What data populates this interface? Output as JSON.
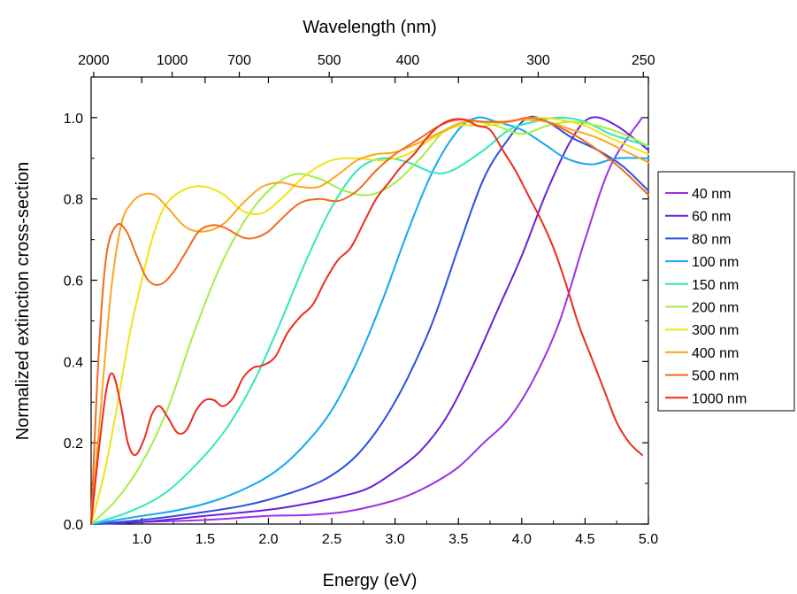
{
  "chart_data": {
    "type": "line",
    "xlabel": "Energy (eV)",
    "ylabel": "Normalized extinction cross-section",
    "top_xlabel": "Wavelength (nm)",
    "xlim": [
      0.6,
      5.0
    ],
    "ylim": [
      0.0,
      1.1
    ],
    "x_ticks": [
      1.0,
      1.5,
      2.0,
      2.5,
      3.0,
      3.5,
      4.0,
      4.5,
      5.0
    ],
    "x_tick_labels": [
      "1.0",
      "1.5",
      "2.0",
      "2.5",
      "3.0",
      "3.5",
      "4.0",
      "4.5",
      "5.0"
    ],
    "y_ticks": [
      0.0,
      0.2,
      0.4,
      0.6,
      0.8,
      1.0
    ],
    "y_tick_labels": [
      "0.0",
      "0.2",
      "0.4",
      "0.6",
      "0.8",
      "1.0"
    ],
    "top_ticks": [
      {
        "label": "2000",
        "energy": 0.62
      },
      {
        "label": "1000",
        "energy": 1.24
      },
      {
        "label": "700",
        "energy": 1.77
      },
      {
        "label": "500",
        "energy": 2.48
      },
      {
        "label": "400",
        "energy": 3.1
      },
      {
        "label": "300",
        "energy": 4.13
      },
      {
        "label": "250",
        "energy": 4.96
      }
    ],
    "grid": false,
    "legend_position": "right",
    "series": [
      {
        "name": "40 nm",
        "color": "#9b30e8",
        "points": [
          [
            0.6,
            0.0
          ],
          [
            1.0,
            0.005
          ],
          [
            1.5,
            0.01
          ],
          [
            2.0,
            0.02
          ],
          [
            2.3,
            0.022
          ],
          [
            2.6,
            0.03
          ],
          [
            2.9,
            0.05
          ],
          [
            3.1,
            0.07
          ],
          [
            3.3,
            0.1
          ],
          [
            3.5,
            0.14
          ],
          [
            3.7,
            0.2
          ],
          [
            3.9,
            0.26
          ],
          [
            4.1,
            0.36
          ],
          [
            4.3,
            0.5
          ],
          [
            4.5,
            0.7
          ],
          [
            4.7,
            0.88
          ],
          [
            4.95,
            1.0
          ]
        ]
      },
      {
        "name": "60 nm",
        "color": "#6a1fd8",
        "points": [
          [
            0.6,
            0.0
          ],
          [
            1.0,
            0.005
          ],
          [
            1.5,
            0.02
          ],
          [
            2.0,
            0.035
          ],
          [
            2.3,
            0.05
          ],
          [
            2.6,
            0.07
          ],
          [
            2.8,
            0.09
          ],
          [
            3.0,
            0.13
          ],
          [
            3.2,
            0.18
          ],
          [
            3.4,
            0.26
          ],
          [
            3.6,
            0.38
          ],
          [
            3.8,
            0.52
          ],
          [
            4.0,
            0.66
          ],
          [
            4.2,
            0.82
          ],
          [
            4.4,
            0.95
          ],
          [
            4.55,
            1.0
          ],
          [
            4.75,
            0.98
          ],
          [
            5.0,
            0.92
          ]
        ]
      },
      {
        "name": "80 nm",
        "color": "#2a4fe0",
        "points": [
          [
            0.6,
            0.0
          ],
          [
            1.0,
            0.01
          ],
          [
            1.5,
            0.03
          ],
          [
            1.8,
            0.045
          ],
          [
            2.0,
            0.06
          ],
          [
            2.3,
            0.09
          ],
          [
            2.5,
            0.12
          ],
          [
            2.7,
            0.17
          ],
          [
            2.9,
            0.25
          ],
          [
            3.1,
            0.36
          ],
          [
            3.3,
            0.5
          ],
          [
            3.5,
            0.68
          ],
          [
            3.7,
            0.85
          ],
          [
            3.9,
            0.95
          ],
          [
            4.05,
            1.0
          ],
          [
            4.2,
            0.99
          ],
          [
            4.4,
            0.95
          ],
          [
            4.6,
            0.92
          ],
          [
            4.8,
            0.88
          ],
          [
            5.0,
            0.82
          ]
        ]
      },
      {
        "name": "100 nm",
        "color": "#14a8ee",
        "points": [
          [
            0.6,
            0.0
          ],
          [
            1.0,
            0.02
          ],
          [
            1.3,
            0.035
          ],
          [
            1.6,
            0.06
          ],
          [
            1.9,
            0.1
          ],
          [
            2.1,
            0.14
          ],
          [
            2.3,
            0.2
          ],
          [
            2.5,
            0.28
          ],
          [
            2.7,
            0.4
          ],
          [
            2.9,
            0.55
          ],
          [
            3.1,
            0.72
          ],
          [
            3.3,
            0.87
          ],
          [
            3.5,
            0.97
          ],
          [
            3.65,
            1.0
          ],
          [
            3.8,
            0.99
          ],
          [
            4.0,
            0.97
          ],
          [
            4.2,
            0.93
          ],
          [
            4.35,
            0.9
          ],
          [
            4.55,
            0.885
          ],
          [
            4.75,
            0.9
          ],
          [
            5.0,
            0.9
          ]
        ]
      },
      {
        "name": "150 nm",
        "color": "#31e6bd",
        "points": [
          [
            0.6,
            0.0
          ],
          [
            0.9,
            0.03
          ],
          [
            1.2,
            0.08
          ],
          [
            1.5,
            0.17
          ],
          [
            1.7,
            0.25
          ],
          [
            1.9,
            0.36
          ],
          [
            2.1,
            0.5
          ],
          [
            2.3,
            0.65
          ],
          [
            2.5,
            0.78
          ],
          [
            2.7,
            0.87
          ],
          [
            2.9,
            0.9
          ],
          [
            3.1,
            0.89
          ],
          [
            3.3,
            0.865
          ],
          [
            3.45,
            0.87
          ],
          [
            3.7,
            0.92
          ],
          [
            3.9,
            0.97
          ],
          [
            4.1,
            0.99
          ],
          [
            4.3,
            1.0
          ],
          [
            4.5,
            0.99
          ],
          [
            4.7,
            0.96
          ],
          [
            5.0,
            0.93
          ]
        ]
      },
      {
        "name": "200 nm",
        "color": "#a3ef45",
        "points": [
          [
            0.6,
            0.0
          ],
          [
            0.8,
            0.06
          ],
          [
            1.0,
            0.15
          ],
          [
            1.2,
            0.28
          ],
          [
            1.4,
            0.46
          ],
          [
            1.6,
            0.62
          ],
          [
            1.8,
            0.74
          ],
          [
            2.0,
            0.82
          ],
          [
            2.2,
            0.86
          ],
          [
            2.4,
            0.85
          ],
          [
            2.6,
            0.82
          ],
          [
            2.8,
            0.81
          ],
          [
            3.0,
            0.84
          ],
          [
            3.2,
            0.9
          ],
          [
            3.4,
            0.97
          ],
          [
            3.6,
            0.99
          ],
          [
            3.8,
            0.98
          ],
          [
            4.0,
            0.96
          ],
          [
            4.2,
            0.98
          ],
          [
            4.4,
            0.99
          ],
          [
            4.6,
            0.98
          ],
          [
            4.8,
            0.96
          ],
          [
            5.0,
            0.93
          ]
        ]
      },
      {
        "name": "300 nm",
        "color": "#f2e215",
        "points": [
          [
            0.6,
            0.0
          ],
          [
            0.7,
            0.12
          ],
          [
            0.8,
            0.28
          ],
          [
            0.9,
            0.46
          ],
          [
            1.0,
            0.6
          ],
          [
            1.1,
            0.72
          ],
          [
            1.2,
            0.79
          ],
          [
            1.35,
            0.825
          ],
          [
            1.5,
            0.83
          ],
          [
            1.65,
            0.81
          ],
          [
            1.8,
            0.77
          ],
          [
            1.95,
            0.765
          ],
          [
            2.1,
            0.8
          ],
          [
            2.3,
            0.86
          ],
          [
            2.5,
            0.895
          ],
          [
            2.7,
            0.9
          ],
          [
            2.9,
            0.895
          ],
          [
            3.1,
            0.91
          ],
          [
            3.3,
            0.95
          ],
          [
            3.5,
            0.98
          ],
          [
            3.7,
            0.98
          ],
          [
            3.9,
            0.99
          ],
          [
            4.1,
            1.0
          ],
          [
            4.3,
            0.995
          ],
          [
            4.5,
            0.98
          ],
          [
            4.7,
            0.95
          ],
          [
            5.0,
            0.91
          ]
        ]
      },
      {
        "name": "400 nm",
        "color": "#fca523",
        "points": [
          [
            0.6,
            0.0
          ],
          [
            0.68,
            0.3
          ],
          [
            0.76,
            0.58
          ],
          [
            0.84,
            0.74
          ],
          [
            0.92,
            0.79
          ],
          [
            1.0,
            0.81
          ],
          [
            1.1,
            0.81
          ],
          [
            1.2,
            0.78
          ],
          [
            1.35,
            0.73
          ],
          [
            1.5,
            0.72
          ],
          [
            1.65,
            0.74
          ],
          [
            1.8,
            0.79
          ],
          [
            1.95,
            0.83
          ],
          [
            2.1,
            0.84
          ],
          [
            2.25,
            0.83
          ],
          [
            2.4,
            0.83
          ],
          [
            2.55,
            0.86
          ],
          [
            2.7,
            0.895
          ],
          [
            2.85,
            0.91
          ],
          [
            3.0,
            0.915
          ],
          [
            3.2,
            0.94
          ],
          [
            3.4,
            0.97
          ],
          [
            3.55,
            0.99
          ],
          [
            3.7,
            0.99
          ],
          [
            3.85,
            0.99
          ],
          [
            4.0,
            0.995
          ],
          [
            4.2,
            0.99
          ],
          [
            4.4,
            0.97
          ],
          [
            4.6,
            0.95
          ],
          [
            4.8,
            0.92
          ],
          [
            5.0,
            0.89
          ]
        ]
      },
      {
        "name": "500 nm",
        "color": "#f26a1c",
        "points": [
          [
            0.6,
            0.0
          ],
          [
            0.66,
            0.42
          ],
          [
            0.72,
            0.66
          ],
          [
            0.8,
            0.735
          ],
          [
            0.88,
            0.72
          ],
          [
            0.96,
            0.66
          ],
          [
            1.05,
            0.6
          ],
          [
            1.15,
            0.59
          ],
          [
            1.25,
            0.62
          ],
          [
            1.35,
            0.67
          ],
          [
            1.45,
            0.72
          ],
          [
            1.55,
            0.735
          ],
          [
            1.65,
            0.73
          ],
          [
            1.8,
            0.705
          ],
          [
            1.9,
            0.705
          ],
          [
            2.0,
            0.72
          ],
          [
            2.1,
            0.75
          ],
          [
            2.25,
            0.79
          ],
          [
            2.4,
            0.8
          ],
          [
            2.55,
            0.795
          ],
          [
            2.7,
            0.82
          ],
          [
            2.85,
            0.87
          ],
          [
            3.0,
            0.91
          ],
          [
            3.2,
            0.95
          ],
          [
            3.35,
            0.98
          ],
          [
            3.5,
            0.995
          ],
          [
            3.7,
            0.99
          ],
          [
            3.9,
            0.99
          ],
          [
            4.05,
            1.0
          ],
          [
            4.2,
            0.99
          ],
          [
            4.4,
            0.96
          ],
          [
            4.6,
            0.92
          ],
          [
            4.8,
            0.87
          ],
          [
            5.0,
            0.81
          ]
        ]
      },
      {
        "name": "1000 nm",
        "color": "#ee2a1e",
        "points": [
          [
            0.6,
            0.0
          ],
          [
            0.66,
            0.18
          ],
          [
            0.72,
            0.33
          ],
          [
            0.77,
            0.37
          ],
          [
            0.83,
            0.3
          ],
          [
            0.89,
            0.2
          ],
          [
            0.95,
            0.17
          ],
          [
            1.02,
            0.21
          ],
          [
            1.08,
            0.27
          ],
          [
            1.14,
            0.29
          ],
          [
            1.21,
            0.26
          ],
          [
            1.28,
            0.225
          ],
          [
            1.35,
            0.23
          ],
          [
            1.43,
            0.28
          ],
          [
            1.5,
            0.305
          ],
          [
            1.57,
            0.305
          ],
          [
            1.64,
            0.29
          ],
          [
            1.72,
            0.31
          ],
          [
            1.8,
            0.36
          ],
          [
            1.88,
            0.385
          ],
          [
            1.95,
            0.39
          ],
          [
            2.05,
            0.41
          ],
          [
            2.15,
            0.47
          ],
          [
            2.25,
            0.51
          ],
          [
            2.35,
            0.54
          ],
          [
            2.45,
            0.6
          ],
          [
            2.55,
            0.65
          ],
          [
            2.65,
            0.68
          ],
          [
            2.75,
            0.74
          ],
          [
            2.85,
            0.8
          ],
          [
            2.95,
            0.84
          ],
          [
            3.05,
            0.88
          ],
          [
            3.15,
            0.91
          ],
          [
            3.25,
            0.95
          ],
          [
            3.35,
            0.98
          ],
          [
            3.45,
            0.995
          ],
          [
            3.55,
            0.995
          ],
          [
            3.65,
            0.98
          ],
          [
            3.75,
            0.97
          ],
          [
            3.85,
            0.92
          ],
          [
            3.95,
            0.87
          ],
          [
            4.05,
            0.81
          ],
          [
            4.15,
            0.75
          ],
          [
            4.25,
            0.68
          ],
          [
            4.35,
            0.59
          ],
          [
            4.45,
            0.49
          ],
          [
            4.55,
            0.41
          ],
          [
            4.65,
            0.33
          ],
          [
            4.75,
            0.25
          ],
          [
            4.85,
            0.2
          ],
          [
            4.95,
            0.17
          ]
        ]
      }
    ]
  }
}
